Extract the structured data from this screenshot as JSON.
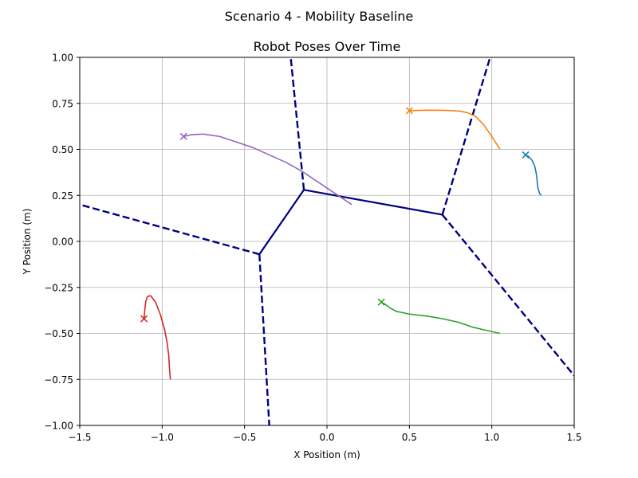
{
  "figure": {
    "suptitle": "Scenario 4 - Mobility Baseline"
  },
  "chart_data": {
    "type": "line",
    "title": "Robot Poses Over Time",
    "xlabel": "X Position (m)",
    "ylabel": "Y Position (m)",
    "xlim": [
      -1.5,
      1.5
    ],
    "ylim": [
      -1.0,
      1.0
    ],
    "grid": true,
    "x_ticks": [
      -1.5,
      -1.0,
      -0.5,
      0.0,
      0.5,
      1.0,
      1.5
    ],
    "x_tick_labels": [
      "−1.5",
      "−1.0",
      "−0.5",
      "0.0",
      "0.5",
      "1.0",
      "1.5"
    ],
    "y_ticks": [
      -1.0,
      -0.75,
      -0.5,
      -0.25,
      0.0,
      0.25,
      0.5,
      0.75,
      1.0
    ],
    "y_tick_labels": [
      "−1.00",
      "−0.75",
      "−0.50",
      "−0.25",
      "0.00",
      "0.25",
      "0.50",
      "0.75",
      "1.00"
    ],
    "voronoi": {
      "color": "#000080",
      "solid_edges": [
        [
          [
            -0.41,
            -0.07
          ],
          [
            -0.14,
            0.28
          ]
        ],
        [
          [
            -0.14,
            0.28
          ],
          [
            0.7,
            0.145
          ]
        ]
      ],
      "dashed_edges": [
        [
          [
            -0.41,
            -0.07
          ],
          [
            -1.5,
            0.2
          ]
        ],
        [
          [
            -0.41,
            -0.07
          ],
          [
            -0.35,
            -1.0
          ]
        ],
        [
          [
            -0.14,
            0.28
          ],
          [
            -0.22,
            1.0
          ]
        ],
        [
          [
            0.7,
            0.145
          ],
          [
            0.99,
            1.0
          ]
        ],
        [
          [
            0.7,
            0.145
          ],
          [
            1.5,
            -0.73
          ]
        ]
      ]
    },
    "series": [
      {
        "color": "#1f77b4",
        "x": [
          1.3,
          1.29,
          1.28,
          1.275,
          1.27,
          1.26,
          1.245,
          1.225,
          1.205
        ],
        "y": [
          0.25,
          0.26,
          0.29,
          0.33,
          0.37,
          0.41,
          0.44,
          0.46,
          0.47
        ]
      },
      {
        "color": "#ff7f0e",
        "x": [
          1.05,
          1.0,
          0.95,
          0.9,
          0.85,
          0.8,
          0.72,
          0.62,
          0.55,
          0.5
        ],
        "y": [
          0.5,
          0.57,
          0.635,
          0.68,
          0.7,
          0.708,
          0.712,
          0.713,
          0.712,
          0.71
        ]
      },
      {
        "color": "#2ca02c",
        "x": [
          1.05,
          0.95,
          0.88,
          0.8,
          0.7,
          0.6,
          0.5,
          0.42,
          0.38,
          0.35,
          0.33
        ],
        "y": [
          -0.5,
          -0.48,
          -0.465,
          -0.44,
          -0.42,
          -0.405,
          -0.395,
          -0.38,
          -0.36,
          -0.34,
          -0.33
        ]
      },
      {
        "color": "#d62728",
        "x": [
          -0.95,
          -0.955,
          -0.96,
          -0.97,
          -0.985,
          -1.01,
          -1.04,
          -1.07,
          -1.09,
          -1.1,
          -1.105,
          -1.11
        ],
        "y": [
          -0.75,
          -0.7,
          -0.62,
          -0.55,
          -0.48,
          -0.4,
          -0.33,
          -0.295,
          -0.3,
          -0.33,
          -0.37,
          -0.42
        ]
      },
      {
        "color": "#9467bd",
        "x": [
          0.15,
          0.05,
          -0.05,
          -0.15,
          -0.25,
          -0.35,
          -0.45,
          -0.55,
          -0.65,
          -0.75,
          -0.82,
          -0.87
        ],
        "y": [
          0.2,
          0.26,
          0.32,
          0.38,
          0.43,
          0.47,
          0.51,
          0.54,
          0.57,
          0.583,
          0.58,
          0.57
        ]
      }
    ]
  }
}
